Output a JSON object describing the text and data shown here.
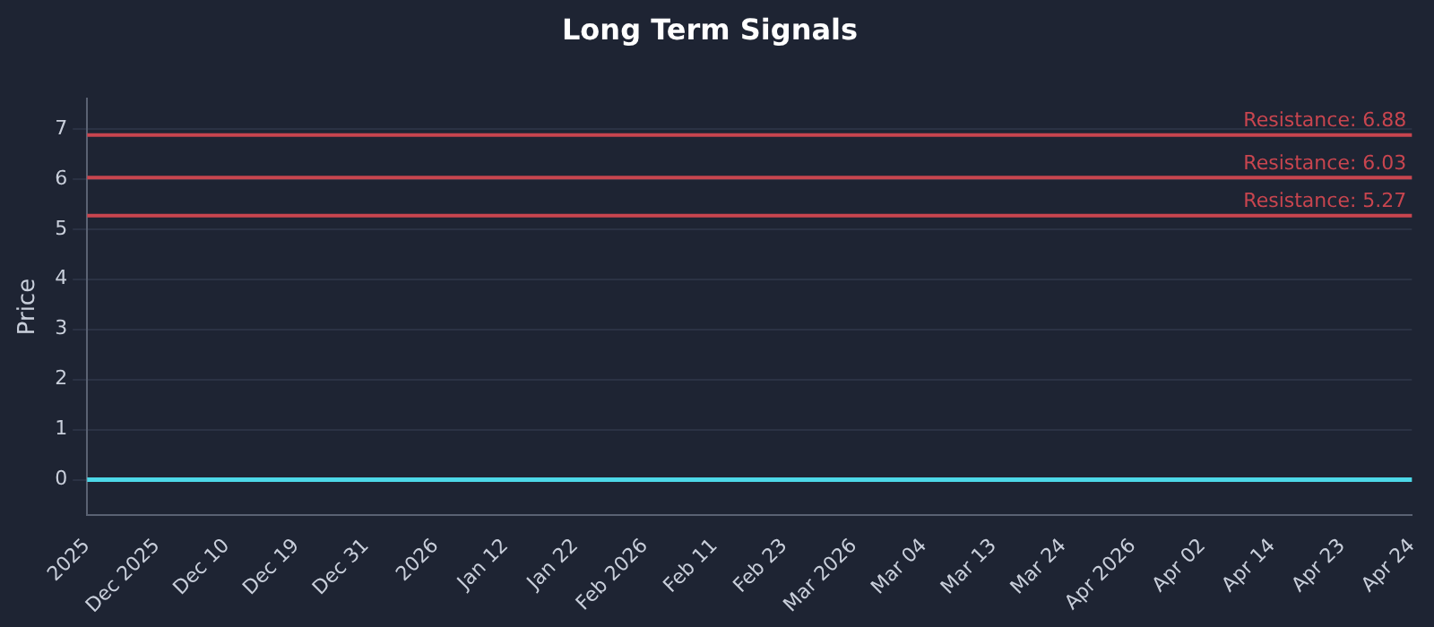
{
  "chart_data": {
    "type": "line",
    "title": "Long Term Signals",
    "ylabel": "Price",
    "categories": [
      "2025",
      "Dec 2025",
      "Dec 10",
      "Dec 19",
      "Dec 31",
      "2026",
      "Jan 12",
      "Jan 22",
      "Feb 2026",
      "Feb 11",
      "Feb 23",
      "Mar 2026",
      "Mar 04",
      "Mar 13",
      "Mar 24",
      "Apr 2026",
      "Apr 02",
      "Apr 14",
      "Apr 23",
      "Apr 24"
    ],
    "series": [
      {
        "color": "#4dd8e8",
        "values": [
          0,
          0,
          0,
          0,
          0,
          0,
          0,
          0,
          0,
          0,
          0,
          0,
          0,
          0,
          0,
          0,
          0,
          0,
          0,
          0
        ]
      }
    ],
    "ylim": [
      -0.7,
      7.6
    ],
    "yticks": [
      0,
      1,
      2,
      3,
      4,
      5,
      6,
      7
    ],
    "grid": "y",
    "legend": false,
    "marker": "none",
    "line_style": "solid",
    "ref_lines": [
      {
        "axis": "y",
        "value": 6.88,
        "label": "Resistance: 6.88",
        "color": "#c8454f"
      },
      {
        "axis": "y",
        "value": 6.03,
        "label": "Resistance: 6.03",
        "color": "#c8454f"
      },
      {
        "axis": "y",
        "value": 5.27,
        "label": "Resistance: 5.27",
        "color": "#c8454f"
      }
    ]
  }
}
